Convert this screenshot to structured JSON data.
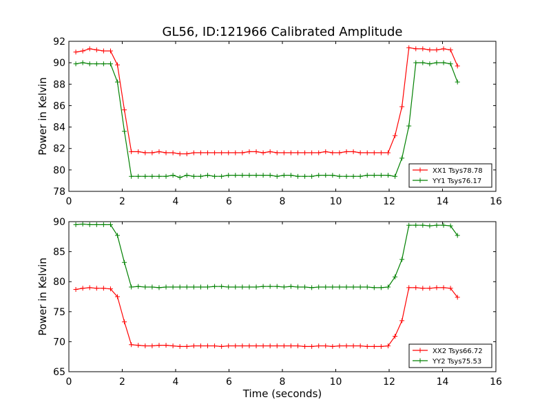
{
  "chart_data": [
    {
      "type": "line",
      "title": "GL56, ID:121966 Calibrated Amplitude",
      "xlabel": "",
      "ylabel": "Power in Kelvin",
      "xlim": [
        0,
        16
      ],
      "ylim": [
        78,
        92
      ],
      "xticks": [
        "0",
        "2",
        "4",
        "6",
        "8",
        "10",
        "12",
        "14",
        "16"
      ],
      "yticks": [
        "78",
        "80",
        "82",
        "84",
        "86",
        "88",
        "90",
        "92"
      ],
      "legend_position": "lower-right",
      "x": [
        0.26,
        0.52,
        0.78,
        1.04,
        1.3,
        1.56,
        1.82,
        2.08,
        2.34,
        2.6,
        2.86,
        3.12,
        3.38,
        3.64,
        3.9,
        4.16,
        4.42,
        4.68,
        4.94,
        5.2,
        5.46,
        5.72,
        5.98,
        6.24,
        6.5,
        6.76,
        7.02,
        7.28,
        7.54,
        7.8,
        8.06,
        8.32,
        8.58,
        8.84,
        9.1,
        9.36,
        9.62,
        9.88,
        10.14,
        10.4,
        10.66,
        10.92,
        11.18,
        11.44,
        11.7,
        11.96,
        12.22,
        12.48,
        12.74,
        13.0,
        13.26,
        13.52,
        13.78,
        14.04,
        14.3,
        14.56
      ],
      "series": [
        {
          "name": "XX1 Tsys78.78",
          "color": "#ff0000",
          "values": [
            91.0,
            91.1,
            91.3,
            91.2,
            91.1,
            91.1,
            89.8,
            85.6,
            81.7,
            81.7,
            81.6,
            81.6,
            81.7,
            81.6,
            81.6,
            81.5,
            81.5,
            81.6,
            81.6,
            81.6,
            81.6,
            81.6,
            81.6,
            81.6,
            81.6,
            81.7,
            81.7,
            81.6,
            81.7,
            81.6,
            81.6,
            81.6,
            81.6,
            81.6,
            81.6,
            81.6,
            81.7,
            81.6,
            81.6,
            81.7,
            81.7,
            81.6,
            81.6,
            81.6,
            81.6,
            81.6,
            83.2,
            85.9,
            91.4,
            91.3,
            91.3,
            91.2,
            91.2,
            91.3,
            91.2,
            89.7
          ]
        },
        {
          "name": "YY1 Tsys76.17",
          "color": "#008000",
          "values": [
            89.9,
            90.0,
            89.9,
            89.9,
            89.9,
            89.9,
            88.2,
            83.6,
            79.4,
            79.4,
            79.4,
            79.4,
            79.4,
            79.4,
            79.5,
            79.3,
            79.5,
            79.4,
            79.4,
            79.5,
            79.4,
            79.4,
            79.5,
            79.5,
            79.5,
            79.5,
            79.5,
            79.5,
            79.5,
            79.4,
            79.5,
            79.5,
            79.4,
            79.4,
            79.4,
            79.5,
            79.5,
            79.5,
            79.4,
            79.4,
            79.4,
            79.4,
            79.5,
            79.5,
            79.5,
            79.5,
            79.4,
            81.1,
            84.1,
            90.0,
            90.0,
            89.9,
            90.0,
            90.0,
            89.9,
            88.2
          ]
        }
      ]
    },
    {
      "type": "line",
      "title": "",
      "xlabel": "Time (seconds)",
      "ylabel": "Power in Kelvin",
      "xlim": [
        0,
        16
      ],
      "ylim": [
        65,
        90
      ],
      "xticks": [
        "0",
        "2",
        "4",
        "6",
        "8",
        "10",
        "12",
        "14",
        "16"
      ],
      "yticks": [
        "65",
        "70",
        "75",
        "80",
        "85",
        "90"
      ],
      "legend_position": "lower-right",
      "x": [
        0.26,
        0.52,
        0.78,
        1.04,
        1.3,
        1.56,
        1.82,
        2.08,
        2.34,
        2.6,
        2.86,
        3.12,
        3.38,
        3.64,
        3.9,
        4.16,
        4.42,
        4.68,
        4.94,
        5.2,
        5.46,
        5.72,
        5.98,
        6.24,
        6.5,
        6.76,
        7.02,
        7.28,
        7.54,
        7.8,
        8.06,
        8.32,
        8.58,
        8.84,
        9.1,
        9.36,
        9.62,
        9.88,
        10.14,
        10.4,
        10.66,
        10.92,
        11.18,
        11.44,
        11.7,
        11.96,
        12.22,
        12.48,
        12.74,
        13.0,
        13.26,
        13.52,
        13.78,
        14.04,
        14.3,
        14.56
      ],
      "series": [
        {
          "name": "XX2 Tsys66.72",
          "color": "#ff0000",
          "values": [
            78.7,
            78.9,
            79.0,
            78.9,
            78.9,
            78.8,
            77.5,
            73.3,
            69.5,
            69.4,
            69.3,
            69.3,
            69.4,
            69.4,
            69.3,
            69.2,
            69.2,
            69.3,
            69.3,
            69.3,
            69.3,
            69.2,
            69.3,
            69.3,
            69.3,
            69.3,
            69.3,
            69.3,
            69.3,
            69.3,
            69.3,
            69.3,
            69.3,
            69.2,
            69.2,
            69.3,
            69.3,
            69.2,
            69.3,
            69.3,
            69.3,
            69.3,
            69.2,
            69.2,
            69.2,
            69.3,
            70.9,
            73.5,
            79.0,
            79.0,
            78.9,
            78.9,
            79.0,
            79.0,
            78.9,
            77.4
          ]
        },
        {
          "name": "YY2 Tsys75.53",
          "color": "#008000",
          "values": [
            89.5,
            89.6,
            89.5,
            89.5,
            89.5,
            89.5,
            87.7,
            83.2,
            79.1,
            79.2,
            79.1,
            79.1,
            79.0,
            79.1,
            79.1,
            79.1,
            79.1,
            79.1,
            79.1,
            79.1,
            79.2,
            79.2,
            79.1,
            79.1,
            79.1,
            79.1,
            79.1,
            79.2,
            79.2,
            79.2,
            79.1,
            79.2,
            79.1,
            79.1,
            79.0,
            79.1,
            79.1,
            79.1,
            79.1,
            79.1,
            79.1,
            79.1,
            79.1,
            79.0,
            79.0,
            79.1,
            80.8,
            83.7,
            89.4,
            89.4,
            89.4,
            89.3,
            89.4,
            89.4,
            89.3,
            87.7
          ]
        }
      ]
    }
  ]
}
